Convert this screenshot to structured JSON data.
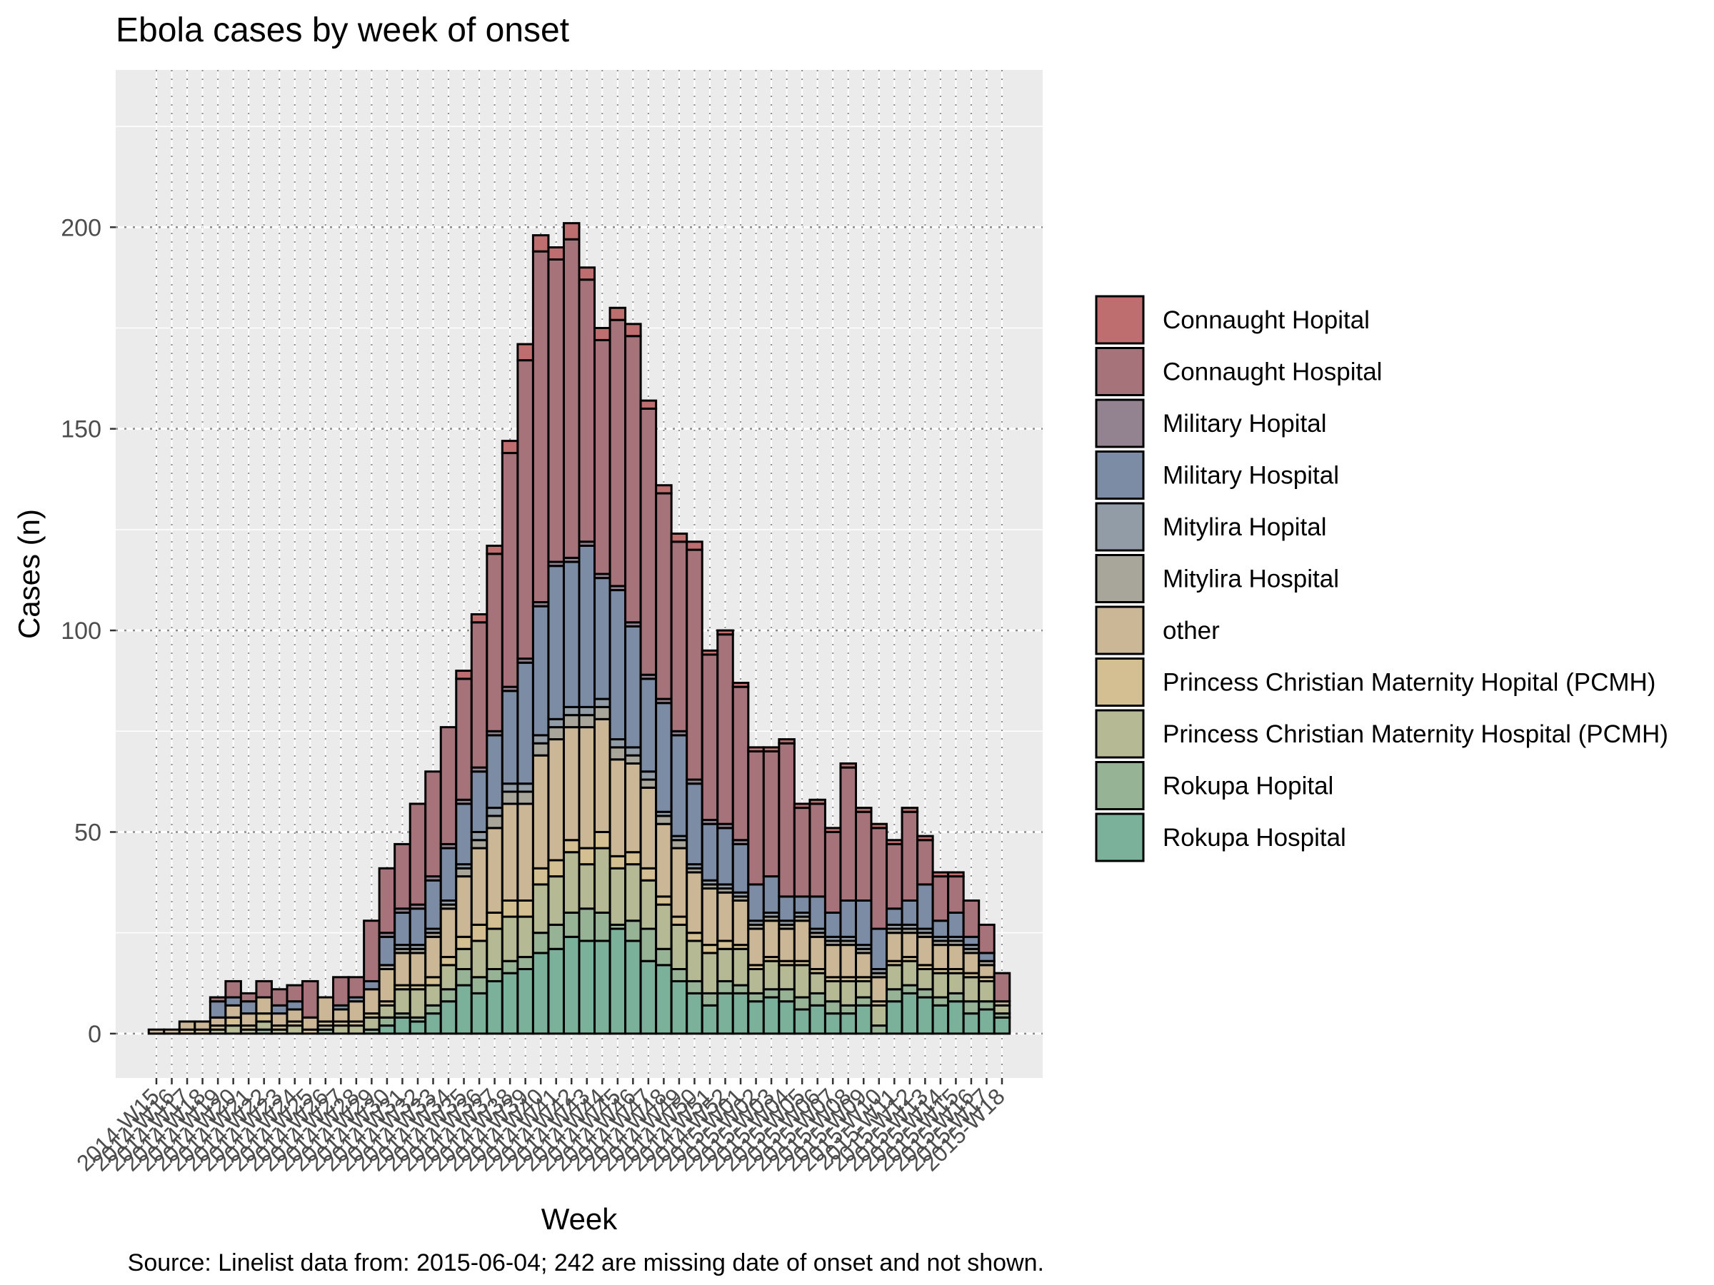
{
  "chart_data": {
    "type": "bar",
    "stacked": true,
    "title": "Ebola cases by week of onset",
    "xlabel": "Week",
    "ylabel": "Cases (n)",
    "caption": "Source: Linelist data from: 2015-06-04; 242 are missing date of onset and not shown.",
    "ylim": [
      -11,
      239
    ],
    "yticks": [
      0,
      50,
      100,
      150,
      200
    ],
    "grid": true,
    "legend_position": "right",
    "first_tick_label": "2014-W15",
    "last_tick_label": "2015-W18",
    "categories": [
      "2014-W15",
      "2014-W16",
      "2014-W17",
      "2014-W18",
      "2014-W19",
      "2014-W20",
      "2014-W21",
      "2014-W22",
      "2014-W23",
      "2014-W24",
      "2014-W25",
      "2014-W26",
      "2014-W27",
      "2014-W28",
      "2014-W29",
      "2014-W30",
      "2014-W31",
      "2014-W32",
      "2014-W33",
      "2014-W34",
      "2014-W35",
      "2014-W36",
      "2014-W37",
      "2014-W38",
      "2014-W39",
      "2014-W40",
      "2014-W41",
      "2014-W42",
      "2014-W43",
      "2014-W44",
      "2014-W45",
      "2014-W46",
      "2014-W47",
      "2014-W48",
      "2014-W49",
      "2014-W50",
      "2014-W51",
      "2014-W52",
      "2015-W01",
      "2015-W02",
      "2015-W03",
      "2015-W04",
      "2015-W05",
      "2015-W06",
      "2015-W07",
      "2015-W08",
      "2015-W09",
      "2015-W10",
      "2015-W11",
      "2015-W12",
      "2015-W13",
      "2015-W14",
      "2015-W15",
      "2015-W16",
      "2015-W17",
      "2015-W18"
    ],
    "series": [
      {
        "name": "Rokupa Hospital",
        "color": "#7BB09A",
        "values": [
          0,
          0,
          0,
          0,
          0,
          0,
          0,
          0,
          0,
          0,
          0,
          0,
          0,
          0,
          0,
          2,
          4,
          3,
          5,
          8,
          12,
          10,
          13,
          15,
          16,
          20,
          21,
          24,
          23,
          23,
          26,
          23,
          18,
          17,
          13,
          10,
          7,
          10,
          10,
          8,
          9,
          8,
          6,
          7,
          5,
          5,
          7,
          0,
          8,
          10,
          9,
          7,
          8,
          5,
          6,
          4
        ]
      },
      {
        "name": "Rokupa Hopital",
        "color": "#97B396",
        "values": [
          0,
          0,
          0,
          0,
          0,
          0,
          0,
          1,
          0,
          0,
          0,
          1,
          0,
          0,
          1,
          2,
          1,
          1,
          2,
          3,
          4,
          4,
          3,
          3,
          3,
          5,
          6,
          6,
          8,
          7,
          1,
          5,
          8,
          4,
          3,
          3,
          3,
          3,
          2,
          2,
          2,
          3,
          3,
          3,
          3,
          2,
          2,
          2,
          3,
          2,
          2,
          2,
          2,
          3,
          2,
          1
        ]
      },
      {
        "name": "Princess Christian Maternity Hospital (PCMH)",
        "color": "#B5BA94",
        "values": [
          0,
          0,
          0,
          0,
          1,
          2,
          1,
          2,
          1,
          2,
          0,
          1,
          2,
          2,
          3,
          3,
          6,
          7,
          5,
          6,
          5,
          9,
          10,
          11,
          10,
          12,
          12,
          15,
          11,
          16,
          14,
          14,
          12,
          11,
          11,
          10,
          10,
          8,
          9,
          6,
          7,
          6,
          8,
          5,
          5,
          6,
          4,
          5,
          6,
          6,
          5,
          6,
          5,
          6,
          5,
          2
        ]
      },
      {
        "name": "Princess Christian Maternity Hopital (PCMH)",
        "color": "#D3BF91",
        "values": [
          0,
          0,
          1,
          1,
          1,
          2,
          1,
          2,
          1,
          1,
          1,
          1,
          1,
          1,
          1,
          1,
          1,
          1,
          2,
          2,
          3,
          4,
          4,
          4,
          4,
          4,
          4,
          3,
          4,
          4,
          3,
          3,
          3,
          2,
          2,
          2,
          2,
          2,
          1,
          1,
          1,
          1,
          1,
          1,
          1,
          1,
          1,
          1,
          1,
          1,
          1,
          1,
          1,
          1,
          1,
          0
        ]
      },
      {
        "name": "other",
        "color": "#CBB796",
        "values": [
          1,
          1,
          2,
          2,
          2,
          3,
          3,
          4,
          3,
          3,
          3,
          6,
          3,
          5,
          6,
          8,
          8,
          8,
          10,
          12,
          15,
          19,
          21,
          24,
          24,
          28,
          30,
          28,
          30,
          28,
          24,
          22,
          20,
          18,
          17,
          15,
          14,
          12,
          11,
          9,
          9,
          8,
          10,
          8,
          8,
          8,
          6,
          6,
          7,
          6,
          7,
          6,
          6,
          5,
          3,
          1
        ]
      },
      {
        "name": "Mitylira Hospital",
        "color": "#A8A59B",
        "values": [
          0,
          0,
          0,
          0,
          0,
          0,
          0,
          0,
          0,
          0,
          0,
          0,
          0,
          0,
          0,
          1,
          1,
          1,
          1,
          1,
          2,
          2,
          3,
          3,
          3,
          3,
          3,
          3,
          3,
          3,
          3,
          2,
          2,
          2,
          2,
          1,
          1,
          1,
          1,
          1,
          1,
          1,
          1,
          1,
          1,
          1,
          1,
          1,
          1,
          1,
          1,
          1,
          1,
          1,
          1,
          0
        ]
      },
      {
        "name": "Mitylira Hopital",
        "color": "#929CA6",
        "values": [
          0,
          0,
          0,
          0,
          0,
          0,
          0,
          0,
          0,
          0,
          0,
          0,
          0,
          0,
          0,
          0,
          1,
          1,
          1,
          1,
          1,
          2,
          2,
          2,
          2,
          2,
          2,
          2,
          2,
          2,
          2,
          2,
          2,
          1,
          1,
          1,
          1,
          1,
          1,
          1,
          1,
          1,
          1,
          1,
          1,
          1,
          1,
          1,
          1,
          1,
          1,
          1,
          1,
          1,
          0,
          0
        ]
      },
      {
        "name": "Military Hospital",
        "color": "#7D8CA5",
        "values": [
          0,
          0,
          0,
          0,
          4,
          2,
          3,
          0,
          2,
          2,
          0,
          0,
          1,
          1,
          2,
          7,
          8,
          9,
          12,
          13,
          15,
          15,
          18,
          23,
          30,
          32,
          38,
          36,
          40,
          30,
          37,
          30,
          23,
          27,
          25,
          20,
          14,
          14,
          12,
          9,
          9,
          6,
          4,
          8,
          6,
          9,
          11,
          10,
          4,
          6,
          11,
          4,
          6,
          2,
          2,
          0
        ]
      },
      {
        "name": "Military Hopital",
        "color": "#938290",
        "values": [
          0,
          0,
          0,
          0,
          0,
          0,
          0,
          0,
          0,
          0,
          0,
          0,
          0,
          0,
          0,
          1,
          1,
          1,
          1,
          1,
          1,
          1,
          1,
          1,
          1,
          1,
          1,
          1,
          1,
          1,
          1,
          1,
          1,
          1,
          1,
          1,
          1,
          1,
          1,
          0,
          0,
          0,
          0,
          0,
          0,
          0,
          0,
          0,
          0,
          0,
          0,
          0,
          0,
          0,
          0,
          0
        ]
      },
      {
        "name": "Connaught Hospital",
        "color": "#A7737A",
        "values": [
          0,
          0,
          0,
          0,
          1,
          4,
          2,
          4,
          4,
          4,
          9,
          0,
          7,
          5,
          15,
          16,
          16,
          25,
          26,
          29,
          30,
          36,
          44,
          58,
          74,
          87,
          75,
          79,
          65,
          58,
          66,
          71,
          66,
          51,
          47,
          57,
          41,
          47,
          38,
          33,
          31,
          38,
          22,
          23,
          20,
          33,
          22,
          25,
          16,
          22,
          11,
          11,
          9,
          9,
          7,
          7
        ]
      },
      {
        "name": "Connaught Hopital",
        "color": "#BF6E70",
        "values": [
          0,
          0,
          0,
          0,
          0,
          0,
          0,
          0,
          0,
          0,
          0,
          0,
          0,
          0,
          0,
          0,
          0,
          0,
          0,
          0,
          2,
          2,
          2,
          3,
          4,
          4,
          3,
          4,
          3,
          3,
          3,
          3,
          2,
          2,
          2,
          2,
          1,
          1,
          1,
          1,
          1,
          1,
          1,
          1,
          1,
          1,
          1,
          1,
          1,
          1,
          1,
          1,
          1,
          0,
          0,
          0
        ]
      }
    ],
    "legend_order": [
      "Connaught Hopital",
      "Connaught Hospital",
      "Military Hopital",
      "Military Hospital",
      "Mitylira Hopital",
      "Mitylira Hospital",
      "other",
      "Princess Christian Maternity Hopital (PCMH)",
      "Princess Christian Maternity Hospital (PCMH)",
      "Rokupa Hopital",
      "Rokupa Hospital"
    ]
  }
}
